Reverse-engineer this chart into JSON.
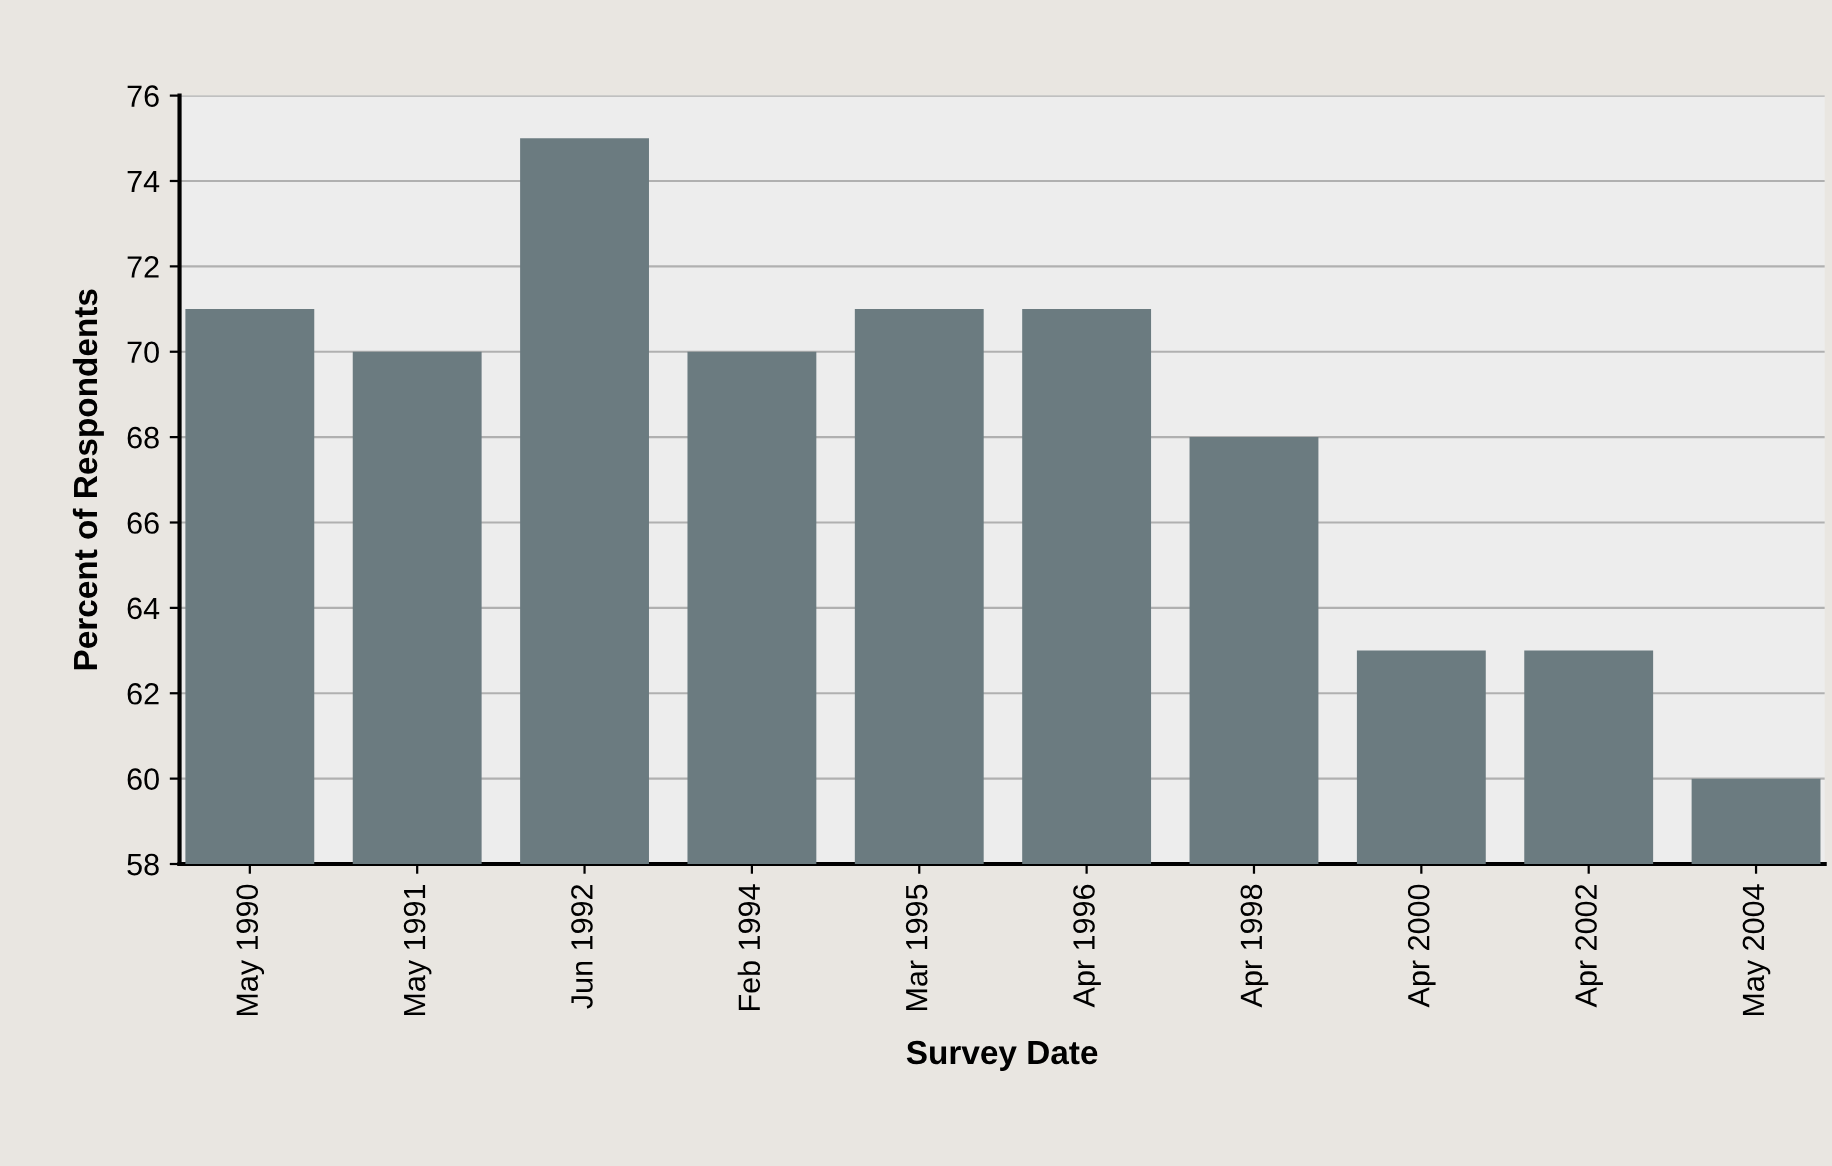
{
  "chart_data": {
    "type": "bar",
    "xlabel": "Survey Date",
    "ylabel": "Percent of Respondents",
    "categories": [
      "May 1990",
      "May 1991",
      "Jun 1992",
      "Feb 1994",
      "Mar 1995",
      "Apr 1996",
      "Apr 1998",
      "Apr 2000",
      "Apr 2002",
      "May 2004"
    ],
    "values": [
      71,
      70,
      75,
      70,
      71,
      71,
      68,
      63,
      63,
      60
    ],
    "color": "#6b7b80",
    "ylim": [
      58,
      76
    ],
    "yticks": [
      58,
      60,
      62,
      64,
      66,
      68,
      70,
      72,
      74,
      76
    ],
    "grid": "y",
    "legend": false
  }
}
